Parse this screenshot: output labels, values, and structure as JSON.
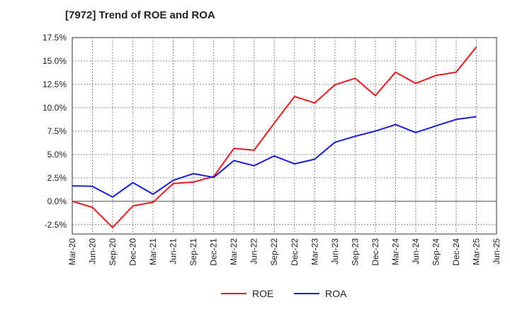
{
  "chart_data": {
    "type": "line",
    "title": "[7972]  Trend of ROE and ROA",
    "xlabel": "",
    "ylabel": "",
    "ylim": [
      -3.5,
      17.5
    ],
    "yticks": [
      "17.5%",
      "15.0%",
      "12.5%",
      "10.0%",
      "7.5%",
      "5.0%",
      "2.5%",
      "0.0%",
      "-2.5%"
    ],
    "ytick_values": [
      17.5,
      15.0,
      12.5,
      10.0,
      7.5,
      5.0,
      2.5,
      0.0,
      -2.5
    ],
    "categories": [
      "Mar-20",
      "Jun-20",
      "Sep-20",
      "Dec-20",
      "Mar-21",
      "Jun-21",
      "Sep-21",
      "Dec-21",
      "Mar-22",
      "Jun-22",
      "Sep-22",
      "Dec-22",
      "Mar-23",
      "Jun-23",
      "Sep-23",
      "Dec-23",
      "Mar-24",
      "Jun-24",
      "Sep-24",
      "Dec-24",
      "Mar-25",
      "Jun-25"
    ],
    "grid": true,
    "legend_position": "bottom",
    "series": [
      {
        "name": "ROE",
        "color": "#e8191e",
        "values": [
          0.0,
          -0.65,
          -2.8,
          -0.5,
          -0.1,
          1.9,
          2.05,
          2.65,
          5.65,
          5.45,
          8.35,
          11.2,
          10.5,
          12.45,
          13.15,
          11.3,
          13.8,
          12.6,
          13.45,
          13.8,
          16.5,
          null
        ]
      },
      {
        "name": "ROA",
        "color": "#1c1cd6",
        "values": [
          1.65,
          1.6,
          0.45,
          2.0,
          0.75,
          2.25,
          2.95,
          2.55,
          4.35,
          3.8,
          4.85,
          4.0,
          4.5,
          6.3,
          6.95,
          7.5,
          8.2,
          7.35,
          8.05,
          8.75,
          9.05,
          null
        ]
      }
    ]
  }
}
